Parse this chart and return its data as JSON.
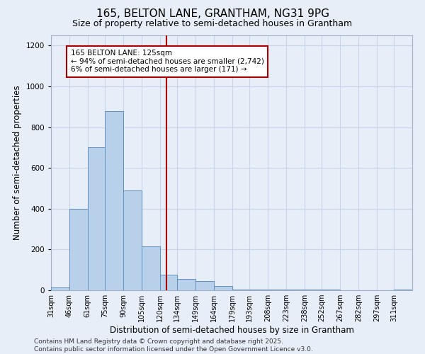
{
  "title_line1": "165, BELTON LANE, GRANTHAM, NG31 9PG",
  "title_line2": "Size of property relative to semi-detached houses in Grantham",
  "xlabel": "Distribution of semi-detached houses by size in Grantham",
  "ylabel": "Number of semi-detached properties",
  "footer": "Contains HM Land Registry data © Crown copyright and database right 2025.\nContains public sector information licensed under the Open Government Licence v3.0.",
  "bar_edges": [
    31,
    46,
    61,
    75,
    90,
    105,
    120,
    134,
    149,
    164,
    179,
    193,
    208,
    223,
    238,
    252,
    267,
    282,
    297,
    311,
    326
  ],
  "bar_heights": [
    15,
    400,
    700,
    880,
    490,
    215,
    75,
    55,
    45,
    20,
    5,
    2,
    2,
    2,
    2,
    2,
    0,
    0,
    0,
    5
  ],
  "bar_color": "#b8d0ea",
  "bar_edgecolor": "#6090c0",
  "grid_color": "#c8d4e8",
  "background_color": "#e8eef8",
  "vline_x": 125,
  "vline_color": "#aa0000",
  "annotation_title": "165 BELTON LANE: 125sqm",
  "annotation_line1": "← 94% of semi-detached houses are smaller (2,742)",
  "annotation_line2": "6% of semi-detached houses are larger (171) →",
  "annotation_box_facecolor": "#ffffff",
  "annotation_box_edgecolor": "#aa0000",
  "ylim": [
    0,
    1250
  ],
  "yticks": [
    0,
    200,
    400,
    600,
    800,
    1000,
    1200
  ],
  "title_fontsize": 11,
  "subtitle_fontsize": 9,
  "tick_label_fontsize": 7,
  "axis_label_fontsize": 8.5,
  "footer_fontsize": 6.5,
  "annotation_fontsize": 7.5
}
